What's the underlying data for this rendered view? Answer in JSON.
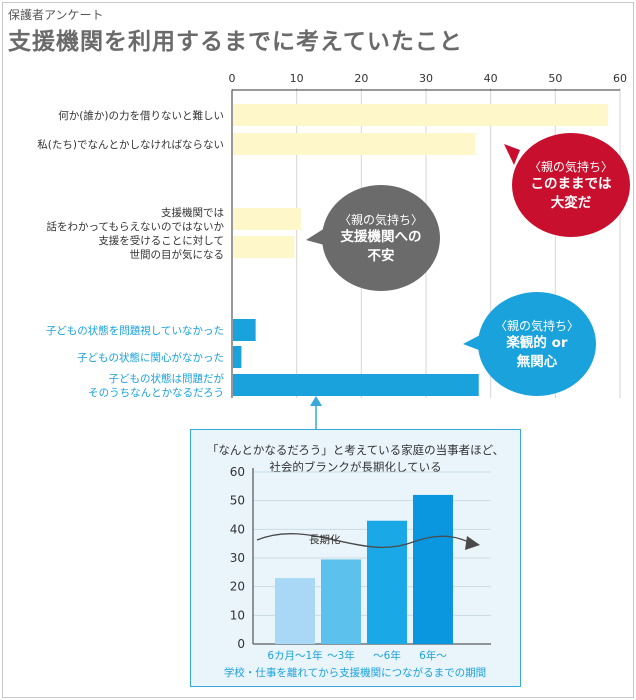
{
  "header": {
    "subtitle": "保護者アンケート",
    "title": "支援機関を利用するまでに考えていたこと"
  },
  "colors": {
    "pale_bar": "#fdf7c9",
    "blue_bar": "#1aa2dd",
    "red": "#c8102e",
    "gray": "#6b6b6b",
    "blue_label": "#1aa2dd"
  },
  "bubbles": {
    "red": {
      "sub": "〈親の気持ち〉",
      "line1": "このままでは",
      "line2": "大変だ"
    },
    "gray": {
      "sub": "〈親の気持ち〉",
      "line1": "支援機関への",
      "line2": "不安"
    },
    "blue": {
      "sub": "〈親の気持ち〉",
      "line1": "楽観的 or",
      "line2": "無関心"
    }
  },
  "inset": {
    "caption_line1": "「なんとかなるだろう」と考えている家庭の当事者ほど、",
    "caption_line2": "社会的ブランクが長期化している",
    "arrow_label": "長期化"
  },
  "chart_data": [
    {
      "type": "bar",
      "orientation": "horizontal",
      "xlim": [
        0,
        60
      ],
      "ticks": [
        0,
        10,
        20,
        30,
        40,
        50,
        60
      ],
      "grid": true,
      "categories": [
        {
          "lines": [
            "何か(誰か)の力を借りないと難しい"
          ],
          "group": "pale"
        },
        {
          "lines": [
            "私(たち)でなんとかしなければならない"
          ],
          "group": "pale"
        },
        {
          "lines": [
            "支援機関では",
            "話をわかってもらえないのではないか"
          ],
          "group": "pale"
        },
        {
          "lines": [
            "支援を受けることに対して",
            "世間の目が気になる"
          ],
          "group": "pale"
        },
        {
          "lines": [
            "子どもの状態を問題視していなかった"
          ],
          "group": "blue"
        },
        {
          "lines": [
            "子どもの状態に関心がなかった"
          ],
          "group": "blue"
        },
        {
          "lines": [
            "子どもの状態は問題だが",
            "そのうちなんとかなるだろう"
          ],
          "group": "blue"
        }
      ],
      "values": [
        58,
        37.5,
        10.5,
        9.5,
        3.5,
        1.3,
        38
      ]
    },
    {
      "type": "bar",
      "ylim": [
        0,
        60
      ],
      "yticks": [
        0,
        10,
        20,
        30,
        40,
        50,
        60
      ],
      "grid": true,
      "categories": [
        "6カ月〜1年",
        "〜3年",
        "〜6年",
        "6年〜"
      ],
      "values": [
        23,
        29.5,
        43,
        52
      ],
      "bar_colors": [
        "#a8d8f5",
        "#5cc1ec",
        "#1ba8e6",
        "#0b96e0"
      ],
      "xlabel": "学校・仕事を離れてから支援機関につながるまでの期間"
    }
  ]
}
